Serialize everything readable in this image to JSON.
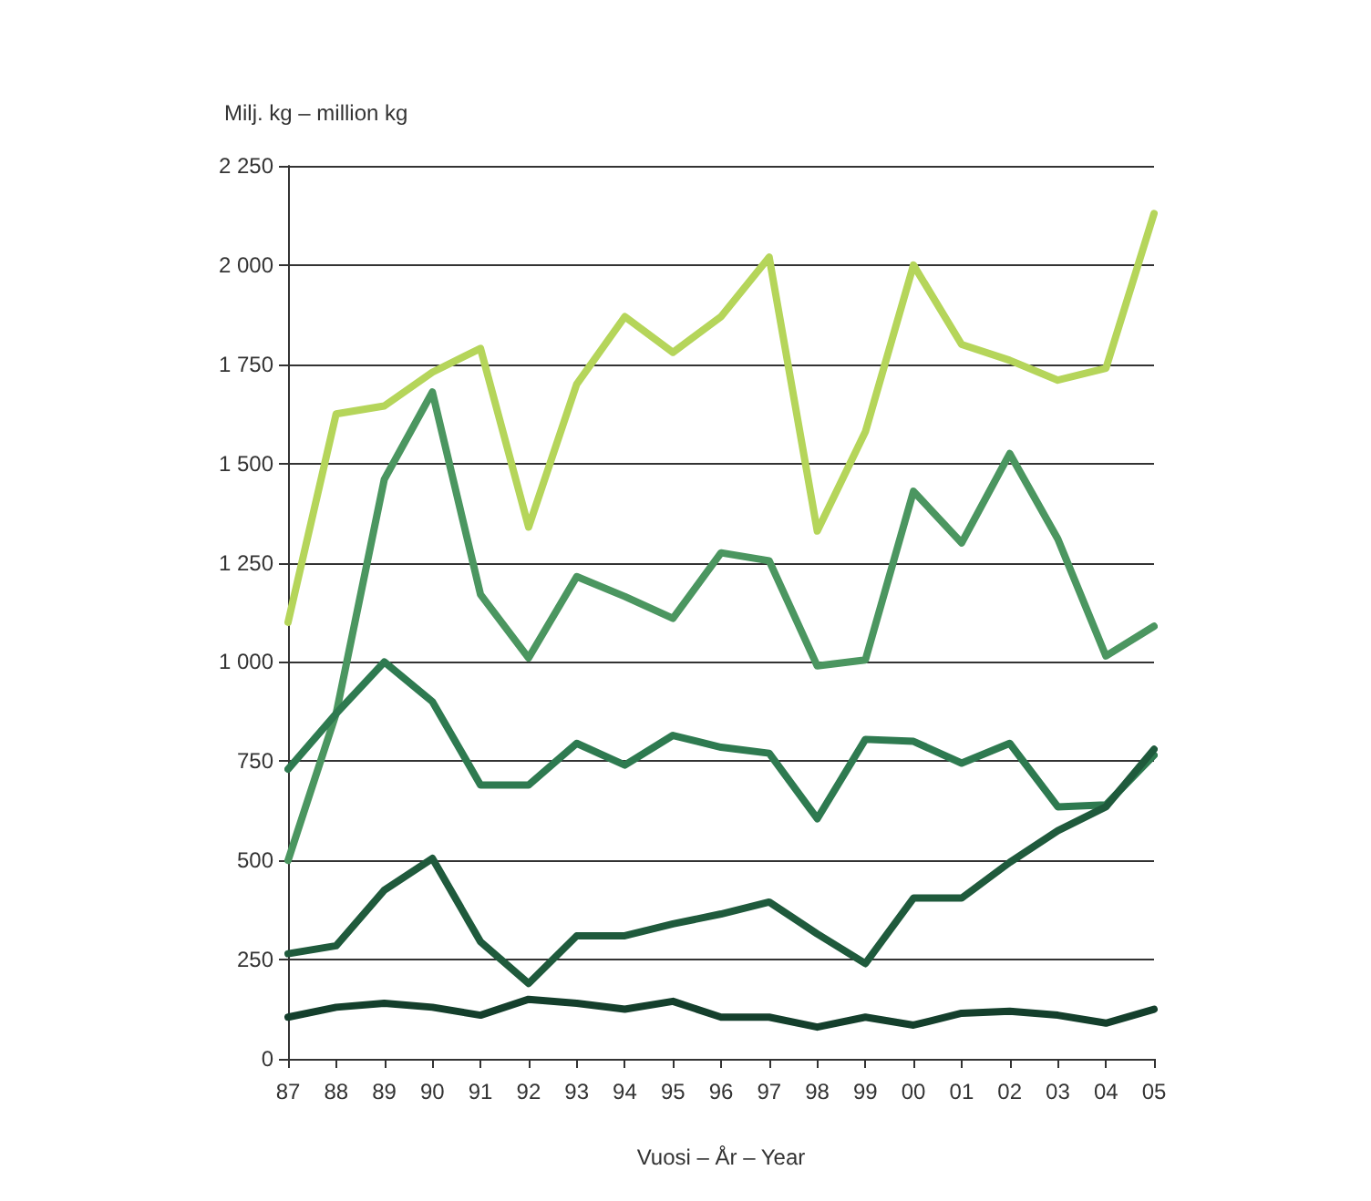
{
  "chart_data": {
    "type": "line",
    "ylabel": "Milj. kg – million kg",
    "xlabel": "Vuosi – År – Year",
    "categories": [
      "87",
      "88",
      "89",
      "90",
      "91",
      "92",
      "93",
      "94",
      "95",
      "96",
      "97",
      "98",
      "99",
      "00",
      "01",
      "02",
      "03",
      "04",
      "05"
    ],
    "series": [
      {
        "color": "#b5d55a",
        "values": [
          1100,
          1625,
          1645,
          1730,
          1790,
          1340,
          1700,
          1870,
          1780,
          1870,
          2020,
          1330,
          1580,
          2000,
          1800,
          1760,
          1710,
          1740,
          2130
        ]
      },
      {
        "color": "#4b9660",
        "values": [
          500,
          870,
          1460,
          1680,
          1170,
          1010,
          1215,
          1165,
          1110,
          1275,
          1255,
          990,
          1005,
          1430,
          1300,
          1525,
          1310,
          1015,
          1090
        ]
      },
      {
        "color": "#2e7a50",
        "values": [
          730,
          870,
          1000,
          900,
          690,
          690,
          795,
          740,
          815,
          785,
          770,
          605,
          805,
          800,
          745,
          795,
          635,
          640,
          765
        ]
      },
      {
        "color": "#1f5a3c",
        "values": [
          265,
          285,
          425,
          505,
          295,
          190,
          310,
          310,
          340,
          365,
          395,
          315,
          240,
          405,
          405,
          495,
          575,
          635,
          780
        ]
      },
      {
        "color": "#143f2c",
        "values": [
          105,
          130,
          140,
          130,
          110,
          150,
          140,
          125,
          145,
          105,
          105,
          80,
          105,
          85,
          115,
          120,
          110,
          90,
          125
        ]
      }
    ],
    "ylim": [
      0,
      2250
    ],
    "yticks": [
      0,
      250,
      500,
      750,
      {
        "value": 1000,
        "label": "1 000"
      },
      {
        "value": 1250,
        "label": "1 250"
      },
      {
        "value": 1500,
        "label": "1 500"
      },
      {
        "value": 1750,
        "label": "1 750"
      },
      {
        "value": 2000,
        "label": "2 000"
      },
      {
        "value": 2250,
        "label": "2 250"
      }
    ],
    "grid": "y",
    "marker": "none",
    "line_style": "solid"
  }
}
